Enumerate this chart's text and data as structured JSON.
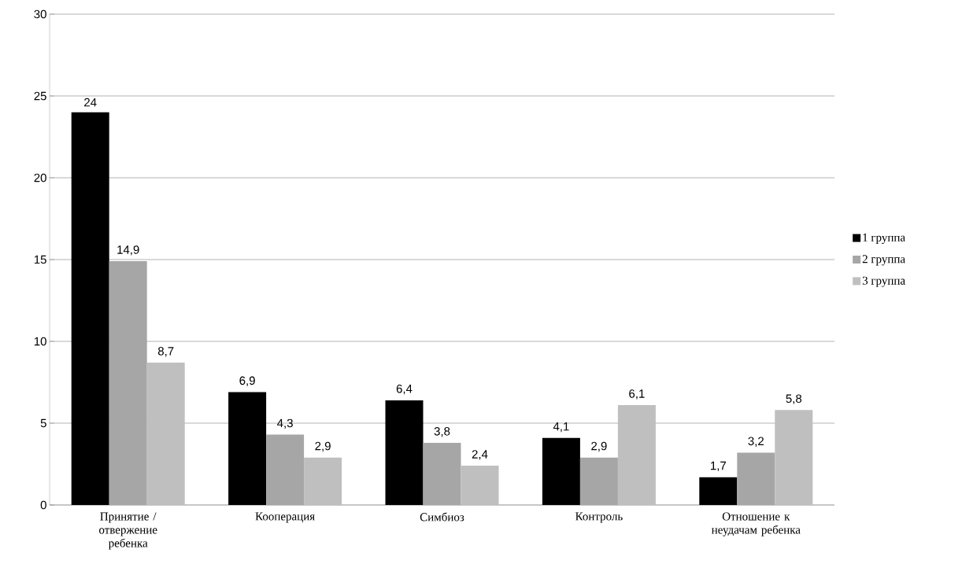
{
  "chart_data": {
    "type": "bar",
    "categories": [
      "Принятие / отвержение ребенка",
      "Кооперация",
      "Симбиоз",
      "Контроль",
      "Отношение к неудачам ребенка"
    ],
    "series": [
      {
        "name": "1 группа",
        "color": "#000000",
        "values": [
          24,
          6.9,
          6.4,
          4.1,
          1.7
        ],
        "value_labels": [
          "24",
          "6,9",
          "6,4",
          "4,1",
          "1,7"
        ]
      },
      {
        "name": "2 группа",
        "color": "#a6a6a6",
        "values": [
          14.9,
          4.3,
          3.8,
          2.9,
          3.2
        ],
        "value_labels": [
          "14,9",
          "4,3",
          "3,8",
          "2,9",
          "3,2"
        ]
      },
      {
        "name": "3 группа",
        "color": "#bfbfbf",
        "values": [
          8.7,
          2.9,
          2.4,
          6.1,
          5.8
        ],
        "value_labels": [
          "8,7",
          "2,9",
          "2,4",
          "6,1",
          "5,8"
        ]
      }
    ],
    "ylim": [
      0,
      30
    ],
    "yticks": [
      0,
      5,
      10,
      15,
      20,
      25,
      30
    ],
    "grid": "y",
    "legend": "right"
  }
}
